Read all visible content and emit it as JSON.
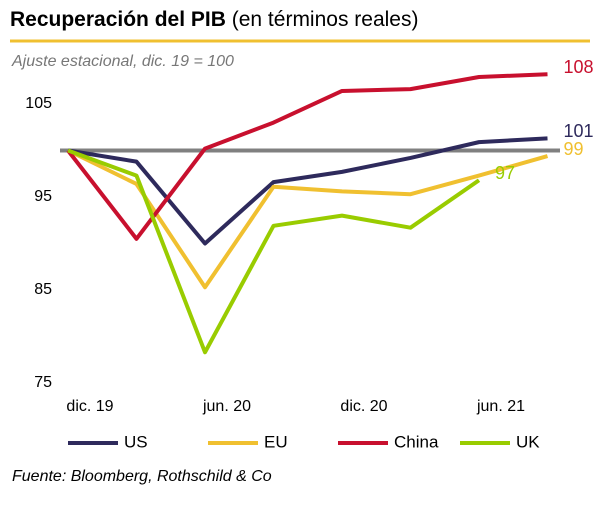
{
  "chart_data": {
    "type": "line",
    "title": "Recuperación del PIB",
    "title_note": "(en términos reales)",
    "subtitle": "Ajuste estacional, dic. 19 = 100",
    "source": "Fuente: Bloomberg, Rothschild & Co",
    "categories": [
      "dic. 19",
      null,
      "jun. 20",
      null,
      "dic. 20",
      null,
      "jun. 21",
      null
    ],
    "ylim": [
      75,
      110
    ],
    "yticks": [
      75,
      85,
      95,
      105
    ],
    "reference_line": {
      "value": 100,
      "color": "#808080"
    },
    "grid": false,
    "legend": "bottom",
    "series": [
      {
        "name": "US",
        "color": "#2e2a5c",
        "values": [
          100,
          98.8,
          90,
          96.6,
          97.7,
          99.2,
          100.9,
          101.3
        ],
        "value_labels": [
          null,
          null,
          null,
          null,
          null,
          null,
          null,
          "101"
        ]
      },
      {
        "name": "EU",
        "color": "#f0c030",
        "values": [
          100,
          96.4,
          85.3,
          96.1,
          95.6,
          95.3,
          97.3,
          99.4
        ],
        "value_labels": [
          null,
          null,
          null,
          null,
          null,
          null,
          null,
          "99"
        ]
      },
      {
        "name": "China",
        "color": "#c8102e",
        "values": [
          100,
          90.5,
          100.2,
          103,
          106.4,
          106.6,
          107.9,
          108.2
        ],
        "value_labels": [
          null,
          null,
          null,
          null,
          null,
          null,
          null,
          "108"
        ]
      },
      {
        "name": "UK",
        "color": "#99cc00",
        "values": [
          100,
          97.3,
          78.3,
          91.9,
          93,
          91.7,
          96.8,
          null
        ],
        "value_labels": [
          null,
          null,
          null,
          null,
          null,
          null,
          "97",
          null
        ]
      }
    ]
  }
}
